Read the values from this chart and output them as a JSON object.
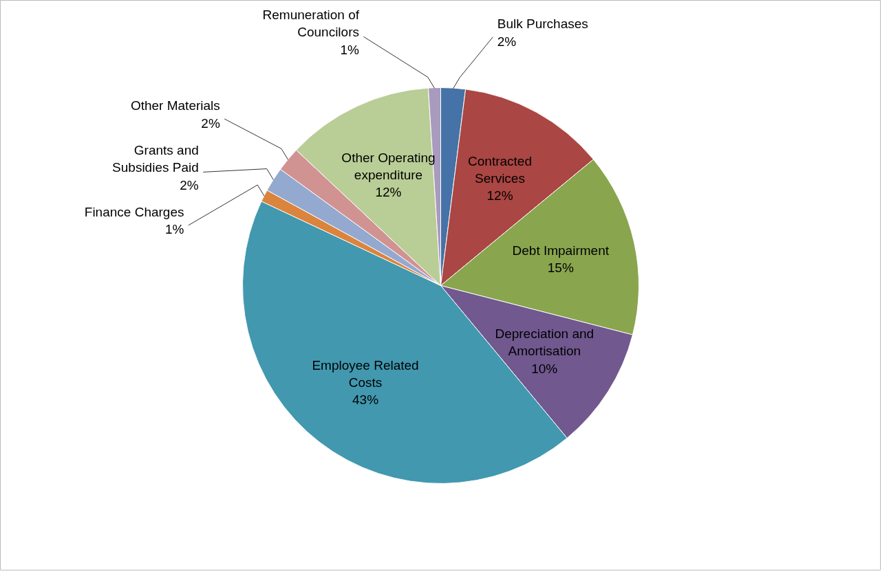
{
  "chart_data": {
    "type": "pie",
    "categories": [
      "Bulk Purchases",
      "Contracted Services",
      "Debt Impairment",
      "Depreciation and Amortisation",
      "Employee Related Costs",
      "Finance Charges",
      "Grants and Subsidies Paid",
      "Other Materials",
      "Other Operating expenditure",
      "Remuneration of Councilors"
    ],
    "values": [
      2,
      12,
      15,
      10,
      43,
      1,
      2,
      2,
      12,
      1
    ],
    "value_labels": [
      "2%",
      "12%",
      "15%",
      "10%",
      "43%",
      "1%",
      "2%",
      "2%",
      "12%",
      "1%"
    ],
    "colors": [
      "#4572a7",
      "#aa4643",
      "#89a54e",
      "#71588f",
      "#4198af",
      "#db843d",
      "#93a9cf",
      "#d19392",
      "#b9cd96",
      "#a99bbd"
    ]
  }
}
